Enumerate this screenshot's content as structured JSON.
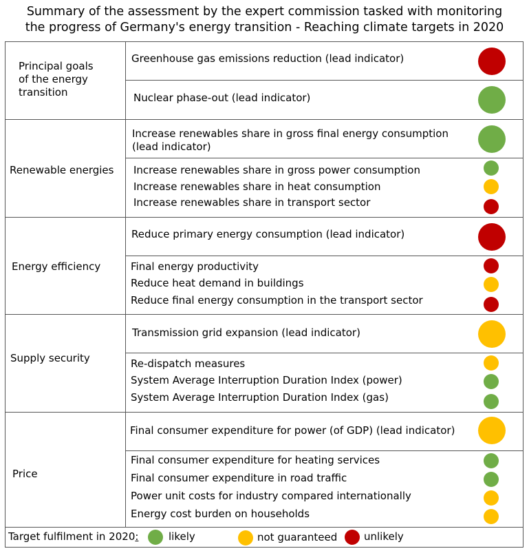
{
  "title": {
    "line1": "Summary of the assessment by the expert commission tasked with monitoring",
    "line2": "the progress of Germany's energy transition - Reaching climate targets in 2020"
  },
  "colors": {
    "likely": "#70ad47",
    "not_guaranteed": "#ffc000",
    "unlikely": "#c00000"
  },
  "sections": [
    {
      "label_lines": [
        "Principal goals",
        "of the energy",
        "transition"
      ],
      "lead": [
        {
          "text": "Greenhouse gas emissions reduction (lead indicator)",
          "status": "unlikely"
        },
        {
          "text": "Nuclear phase-out (lead indicator)",
          "status": "likely"
        }
      ]
    },
    {
      "label": "Renewable energies",
      "lead_lines": [
        "Increase renewables share in gross final energy consumption",
        "(lead indicator)"
      ],
      "lead_status": "likely",
      "items": [
        {
          "text": "Increase renewables share in gross power consumption",
          "status": "likely"
        },
        {
          "text": "Increase renewables share in heat consumption",
          "status": "not_guaranteed"
        },
        {
          "text": "Increase renewables share in transport sector",
          "status": "unlikely"
        }
      ]
    },
    {
      "label": "Energy efficiency",
      "lead": "Reduce primary energy consumption (lead indicator)",
      "lead_status": "unlikely",
      "items": [
        {
          "text": "Final energy productivity",
          "status": "unlikely"
        },
        {
          "text": "Reduce heat demand in buildings",
          "status": "not_guaranteed"
        },
        {
          "text": "Reduce final energy consumption in the transport sector",
          "status": "unlikely"
        }
      ]
    },
    {
      "label": "Supply security",
      "lead": "Transmission grid expansion (lead indicator)",
      "lead_status": "not_guaranteed",
      "items": [
        {
          "text": "Re-dispatch measures",
          "status": "not_guaranteed"
        },
        {
          "text": "System Average Interruption Duration Index (power)",
          "status": "likely"
        },
        {
          "text": "System Average Interruption Duration Index (gas)",
          "status": "likely"
        }
      ]
    },
    {
      "label": "Price",
      "lead": "Final consumer expenditure for power (of GDP) (lead indicator)",
      "lead_status": "not_guaranteed",
      "items": [
        {
          "text": "Final consumer expenditure for heating services",
          "status": "likely"
        },
        {
          "text": "Final consumer expenditure in road traffic",
          "status": "likely"
        },
        {
          "text": "Power unit costs for industry compared internationally",
          "status": "not_guaranteed"
        },
        {
          "text": "Energy cost burden on households",
          "status": "not_guaranteed"
        }
      ]
    }
  ],
  "legend": {
    "heading": "Target fulfilment in 2020",
    "colon": ":",
    "likely": "likely",
    "not_guaranteed": "not guaranteed",
    "unlikely": "unlikely"
  }
}
